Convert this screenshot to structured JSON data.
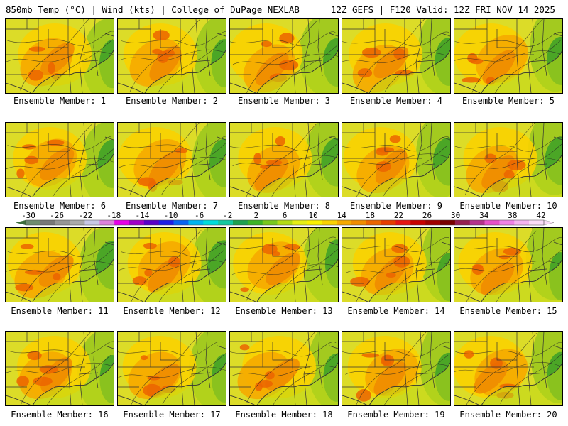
{
  "header": {
    "left_title": "850mb Temp (°C) | Wind (kts) | College of DuPage NEXLAB",
    "right_title": "12Z GEFS | F120 Valid: 12Z FRI NOV 14 2025"
  },
  "members": [
    "Ensemble Member: 1",
    "Ensemble Member: 2",
    "Ensemble Member: 3",
    "Ensemble Member: 4",
    "Ensemble Member: 5",
    "Ensemble Member: 6",
    "Ensemble Member: 7",
    "Ensemble Member: 8",
    "Ensemble Member: 9",
    "Ensemble Member: 10",
    "Ensemble Member: 11",
    "Ensemble Member: 12",
    "Ensemble Member: 13",
    "Ensemble Member: 14",
    "Ensemble Member: 15",
    "Ensemble Member: 16",
    "Ensemble Member: 17",
    "Ensemble Member: 18",
    "Ensemble Member: 19",
    "Ensemble Member: 20"
  ],
  "colorbar": {
    "labels": [
      "-30",
      "-26",
      "-22",
      "-18",
      "-14",
      "-10",
      "-6",
      "-2",
      "2",
      "6",
      "10",
      "14",
      "18",
      "22",
      "26",
      "30",
      "34",
      "38",
      "42"
    ],
    "colors": [
      "#6e8c6e",
      "#787878",
      "#969696",
      "#aaaaaa",
      "#c8c8e6",
      "#dc82dc",
      "#e600e6",
      "#a000c8",
      "#5a00c8",
      "#1e1ee6",
      "#0a64f0",
      "#00b4f0",
      "#00dcdc",
      "#14c8a0",
      "#1ea050",
      "#3cb428",
      "#78c81e",
      "#b4dc14",
      "#e6ee14",
      "#faf000",
      "#fad200",
      "#f5aa00",
      "#f08c00",
      "#eb6400",
      "#e63c00",
      "#e61414",
      "#c80000",
      "#a00000",
      "#780000",
      "#961e50",
      "#b4328c",
      "#e650c8",
      "#f082e6",
      "#f5b4f0",
      "#fadcf8"
    ]
  }
}
